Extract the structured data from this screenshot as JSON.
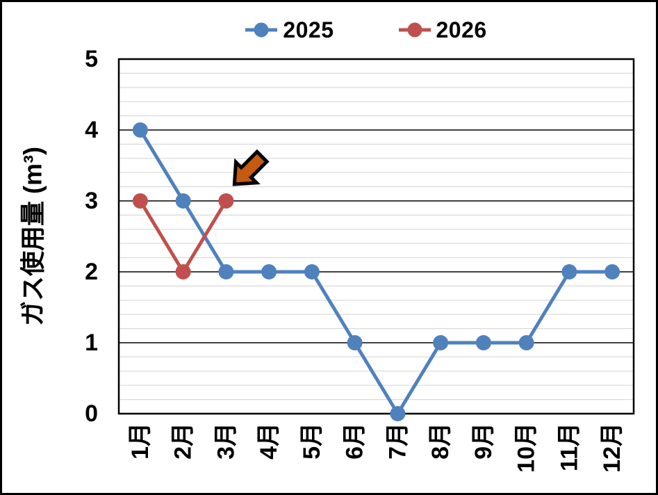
{
  "window": {
    "background_color": "#FFFFFF",
    "border_color": "#000000"
  },
  "legend": {
    "position": "top",
    "items": [
      {
        "label": "2025",
        "color": "#4F81BD"
      },
      {
        "label": "2026",
        "color": "#C0504D"
      }
    ]
  },
  "chart_data": {
    "type": "line",
    "title": "",
    "xlabel": "",
    "ylabel": "ガス使用量 (m³)",
    "categories": [
      "1月",
      "2月",
      "3月",
      "4月",
      "5月",
      "6月",
      "7月",
      "8月",
      "9月",
      "10月",
      "11月",
      "12月"
    ],
    "series": [
      {
        "name": "2025",
        "color": "#4F81BD",
        "values": [
          4,
          3,
          2,
          2,
          2,
          1,
          0,
          1,
          1,
          1,
          2,
          2
        ]
      },
      {
        "name": "2026",
        "color": "#C0504D",
        "values": [
          3,
          2,
          3,
          null,
          null,
          null,
          null,
          null,
          null,
          null,
          null,
          null
        ]
      }
    ],
    "ylim": [
      0,
      5
    ],
    "y_ticks": [
      0,
      1,
      2,
      3,
      4,
      5
    ],
    "minor_grid_step": 0.2,
    "grid": true,
    "grid_minor_color": "#D9D9D9",
    "grid_major_color": "#404040",
    "axis_color": "#000000",
    "legend_position": "top",
    "annotation": {
      "type": "arrow",
      "color": "#C55A11",
      "outline": "#000000",
      "direction": "down-left",
      "points_to": {
        "series": "2026",
        "category": "3月",
        "value": 3
      }
    }
  }
}
